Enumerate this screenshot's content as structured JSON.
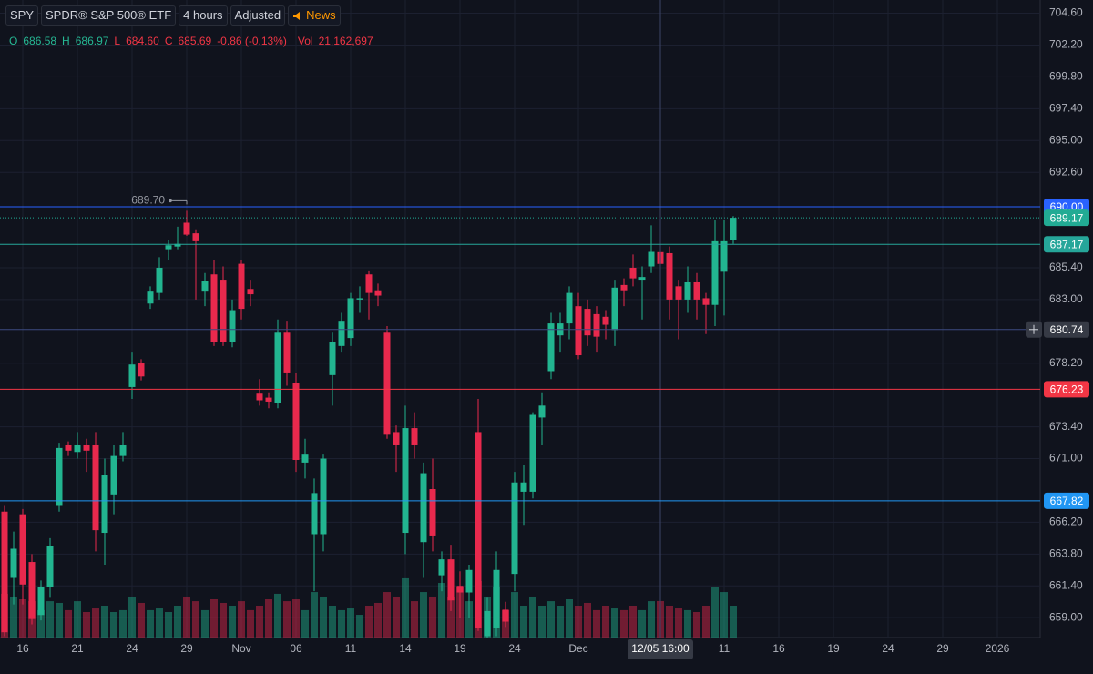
{
  "chart_data": {
    "type": "candlestick",
    "toolbar": [
      "SPY",
      "SPDR® S&P 500® ETF",
      "4 hours",
      "Adjusted",
      "News"
    ],
    "legend": {
      "labels": [
        "O",
        "H",
        "L",
        "C"
      ],
      "values": [
        "686.58",
        "686.97",
        "684.60",
        "685.69"
      ],
      "change": "-0.86 (-0.13%)",
      "volume_label": "Vol",
      "volume": "21,162,697"
    },
    "categories": [
      null,
      null,
      "16",
      null,
      null,
      null,
      null,
      null,
      "21",
      null,
      null,
      null,
      null,
      null,
      "24",
      null,
      null,
      null,
      null,
      null,
      "29",
      null,
      null,
      null,
      null,
      null,
      "Nov",
      null,
      null,
      null,
      null,
      null,
      "06",
      null,
      null,
      null,
      null,
      null,
      "11",
      null,
      null,
      null,
      null,
      null,
      "14",
      null,
      null,
      null,
      null,
      null,
      "19",
      null,
      null,
      null,
      null,
      null,
      "24",
      null,
      null,
      null,
      null,
      null,
      null,
      "Dec",
      null,
      null,
      null,
      null,
      null,
      null,
      null,
      null,
      "12/05 16:00",
      null,
      null,
      null,
      null,
      null,
      null,
      "11",
      null,
      null,
      null,
      null,
      null,
      "16",
      null,
      null,
      null,
      null,
      null,
      "19",
      null,
      null,
      null,
      null,
      null,
      "24",
      null,
      null,
      null,
      null,
      null,
      "29",
      null,
      null,
      null,
      null,
      null,
      "2026",
      null
    ],
    "open": [
      667,
      662,
      666.8,
      663.2,
      659.2,
      661.3,
      667.5,
      672,
      671.5,
      672,
      672,
      665.4,
      668.3,
      671.2,
      676.4,
      678.2,
      682.7,
      683.5,
      686.8,
      687,
      688.8,
      688,
      683.6,
      684.9,
      684.5,
      679.8,
      685.7,
      683.8,
      675.9,
      675.6,
      675.2,
      680.5,
      676.7,
      670.7,
      665.3,
      665.3,
      677.3,
      679.5,
      680.1,
      683,
      684.9,
      683.7,
      680.5,
      673,
      665.4,
      673.3,
      664.7,
      668.7,
      662.2,
      663.4,
      661.4,
      660.9,
      673,
      657.6,
      658.2,
      659.6,
      662.3,
      668.5,
      668.5,
      674.1,
      677.6,
      680.3,
      681.2,
      682.5,
      682.3,
      681.9,
      681.7,
      680.7,
      684.1,
      685.4,
      684.5,
      685.5,
      686.58,
      686.5,
      684,
      683,
      684.3,
      683.1,
      682.6,
      685.1,
      687.5,
      null,
      null,
      null,
      null,
      null,
      null,
      null,
      null,
      null,
      null,
      null,
      null,
      null,
      null,
      null,
      null,
      null,
      null,
      null,
      null,
      null,
      null,
      null,
      null,
      null,
      null,
      null,
      null,
      null,
      null
    ],
    "high": [
      667.5,
      665.5,
      667.2,
      663.8,
      661.8,
      665,
      672.2,
      672.3,
      673,
      672.5,
      673,
      671,
      672,
      673,
      679,
      678.5,
      684,
      686.2,
      687.5,
      688.5,
      689.7,
      688.3,
      685,
      686,
      685.5,
      683,
      686,
      684.5,
      677,
      676,
      681.5,
      681.4,
      677.5,
      672.5,
      669.5,
      671.3,
      680.5,
      682,
      683.5,
      684,
      685.2,
      684.2,
      681,
      673.5,
      675,
      674.5,
      670.7,
      671,
      664,
      664.5,
      662.5,
      663,
      675.5,
      660.5,
      664,
      660.2,
      670,
      670.5,
      674.5,
      676,
      682,
      682,
      684,
      683.5,
      683,
      682.5,
      682.2,
      684.5,
      684.6,
      686.4,
      685.5,
      688.6,
      686.97,
      687,
      684.5,
      685.5,
      685,
      683.5,
      689,
      689,
      689.3,
      null,
      null,
      null,
      null,
      null,
      null,
      null,
      null,
      null,
      null,
      null,
      null,
      null,
      null,
      null,
      null,
      null,
      null,
      null,
      null,
      null,
      null,
      null,
      null,
      null,
      null,
      null,
      null,
      null,
      null
    ],
    "low": [
      657.6,
      660,
      660,
      658.5,
      658.8,
      660.5,
      667,
      671.2,
      671,
      670,
      664,
      663,
      666.8,
      670.8,
      675.5,
      676.9,
      682.3,
      683,
      686,
      686.8,
      687.8,
      683,
      682.5,
      679.5,
      679.5,
      679.4,
      681.5,
      682.5,
      675,
      674.8,
      674.8,
      676.5,
      670,
      669.5,
      661,
      664,
      675,
      679,
      679.5,
      682,
      681.5,
      682.5,
      672.5,
      670,
      663.8,
      671,
      662,
      664,
      661,
      659.5,
      659,
      659,
      658,
      657.5,
      657.6,
      658.3,
      661,
      666,
      668,
      672,
      677,
      679,
      680,
      678.5,
      679.5,
      679,
      680,
      679.5,
      682.5,
      684,
      681.5,
      685,
      684.6,
      681.5,
      680,
      682,
      681.5,
      680.4,
      681,
      681.8,
      687.2,
      null,
      null,
      null,
      null,
      null,
      null,
      null,
      null,
      null,
      null,
      null,
      null,
      null,
      null,
      null,
      null,
      null,
      null,
      null,
      null,
      null,
      null,
      null,
      null,
      null,
      null,
      null,
      null,
      null,
      null
    ],
    "close": [
      657.9,
      664.2,
      661.5,
      658.9,
      661.3,
      664.4,
      671.8,
      671.6,
      672,
      671.6,
      665.6,
      669.8,
      671.2,
      672,
      678.1,
      677.2,
      683.6,
      685.4,
      687.1,
      687.2,
      687.9,
      687.4,
      684.4,
      679.8,
      679.8,
      682.2,
      682.3,
      683.4,
      675.4,
      675.3,
      680.5,
      677.5,
      670.9,
      671.3,
      668.4,
      671,
      679.8,
      681.4,
      683.1,
      683.1,
      683.5,
      683.3,
      672.8,
      672,
      673.3,
      672,
      669.9,
      665.2,
      663.4,
      660.3,
      660.9,
      662.6,
      658.2,
      659.5,
      662.6,
      658.7,
      669.2,
      669.2,
      674.3,
      675,
      681.2,
      681.2,
      683.5,
      678.8,
      680.3,
      680.2,
      681.1,
      683.9,
      683.7,
      684.6,
      684.7,
      686.6,
      685.69,
      683,
      683,
      684.3,
      683,
      682.6,
      687.4,
      687.4,
      689.17,
      null,
      null,
      null,
      null,
      null,
      null,
      null,
      null,
      null,
      null,
      null,
      null,
      null,
      null,
      null,
      null,
      null,
      null,
      null,
      null,
      null,
      null,
      null,
      null,
      null,
      null,
      null,
      null,
      null,
      null
    ],
    "volume": [
      25400000,
      23800000,
      22200000,
      21100000,
      15900000,
      21100000,
      20100000,
      15900000,
      21100000,
      14800000,
      16900000,
      18500000,
      14800000,
      15900000,
      23800000,
      20100000,
      15900000,
      16900000,
      14800000,
      18500000,
      23800000,
      21100000,
      15900000,
      22200000,
      20100000,
      18500000,
      21100000,
      15900000,
      18500000,
      22200000,
      25400000,
      21100000,
      22200000,
      15900000,
      26400000,
      23800000,
      18500000,
      15900000,
      16900000,
      13200000,
      18500000,
      20100000,
      26400000,
      23800000,
      34400000,
      21100000,
      26400000,
      23800000,
      31700000,
      23800000,
      29100000,
      21100000,
      32800000,
      23800000,
      29100000,
      15900000,
      26400000,
      18500000,
      23800000,
      18500000,
      21100000,
      18500000,
      22200000,
      18500000,
      20100000,
      15900000,
      18500000,
      16900000,
      15900000,
      18500000,
      15900000,
      21100000,
      21162697,
      18500000,
      16900000,
      15900000,
      14800000,
      18500000,
      29100000,
      26400000,
      18500000,
      null,
      null,
      null,
      null,
      null,
      null,
      null,
      null,
      null,
      null,
      null,
      null,
      null,
      null,
      null,
      null,
      null,
      null,
      null,
      null,
      null,
      null,
      null,
      null,
      null,
      null,
      null,
      null,
      null,
      null
    ],
    "up_color": "#22b590",
    "down_color": "#e8294d",
    "ylim": [
      657.5,
      705.6
    ],
    "y2lim": [
      0,
      370000000
    ],
    "yticks": [
      {
        "value": 704.6,
        "label": "704.60"
      },
      {
        "value": 702.2,
        "label": "702.20"
      },
      {
        "value": 699.8,
        "label": "699.80"
      },
      {
        "value": 697.4,
        "label": "697.40"
      },
      {
        "value": 695,
        "label": "695.00"
      },
      {
        "value": 692.6,
        "label": "692.60"
      },
      {
        "value": 685.4,
        "label": "685.40"
      },
      {
        "value": 683,
        "label": "683.00"
      },
      {
        "value": 678.2,
        "label": "678.20"
      },
      {
        "value": 673.4,
        "label": "673.40"
      },
      {
        "value": 671,
        "label": "671.00"
      },
      {
        "value": 666.2,
        "label": "666.20"
      },
      {
        "value": 663.8,
        "label": "663.80"
      },
      {
        "value": 661.4,
        "label": "661.40"
      },
      {
        "value": 659,
        "label": "659.00"
      }
    ],
    "grid": true,
    "high_marker": {
      "value": 689.7,
      "label": "689.70"
    },
    "price_lines": [
      {
        "price": {
          "value": 690,
          "label": "690.00"
        },
        "color": "#2962ff",
        "style": "solid"
      },
      {
        "price": 689.17,
        "color": "#22ab94",
        "style": "dotted"
      },
      {
        "price": 687.17,
        "color": "#26a69a",
        "style": "solid"
      },
      {
        "price": 676.23,
        "color": "#f23645",
        "style": "solid"
      },
      {
        "price": 667.82,
        "color": "#2196f3",
        "style": "solid"
      }
    ],
    "crosshair": {
      "index": 72,
      "price": 680.74
    }
  }
}
